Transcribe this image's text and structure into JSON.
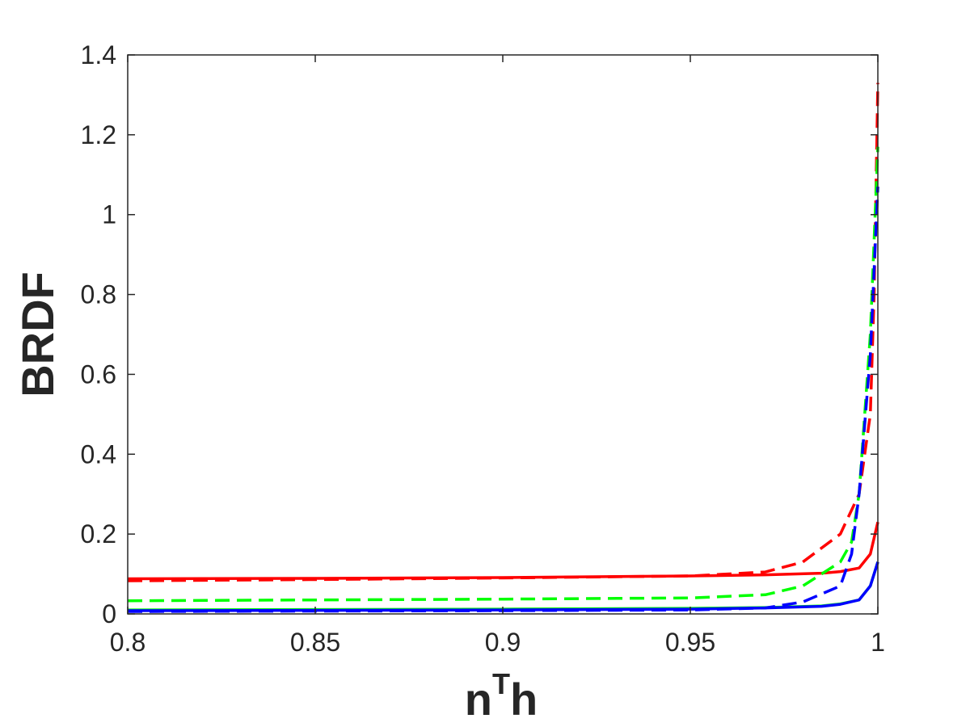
{
  "chart_data": {
    "type": "line",
    "title": "",
    "xlabel": "n",
    "xlabel_superscript": "T",
    "xlabel_suffix": "h",
    "ylabel": "BRDF",
    "xlim": [
      0.8,
      1.0
    ],
    "ylim": [
      0,
      1.4
    ],
    "xticks": [
      0.8,
      0.85,
      0.9,
      0.95,
      1.0
    ],
    "xtick_labels": [
      "0.8",
      "0.85",
      "0.9",
      "0.95",
      "1"
    ],
    "yticks": [
      0,
      0.2,
      0.4,
      0.6,
      0.8,
      1.0,
      1.2,
      1.4
    ],
    "ytick_labels": [
      "0",
      "0.2",
      "0.4",
      "0.6",
      "0.8",
      "1",
      "1.2",
      "1.4"
    ],
    "grid": false,
    "legend": "none",
    "series": [
      {
        "color": "#ff0000",
        "style": "solid",
        "x": [
          0.8,
          0.85,
          0.9,
          0.95,
          0.97,
          0.985,
          0.99,
          0.995,
          0.998,
          1.0
        ],
        "y": [
          0.088,
          0.089,
          0.091,
          0.095,
          0.098,
          0.102,
          0.106,
          0.115,
          0.15,
          0.23
        ]
      },
      {
        "color": "#ff0000",
        "style": "dashed",
        "x": [
          0.8,
          0.85,
          0.9,
          0.95,
          0.97,
          0.98,
          0.99,
          0.995,
          0.998,
          0.999,
          1.0
        ],
        "y": [
          0.083,
          0.086,
          0.09,
          0.095,
          0.105,
          0.13,
          0.2,
          0.3,
          0.5,
          0.8,
          1.33
        ]
      },
      {
        "color": "#00ff00",
        "style": "solid",
        "x": [
          0.8,
          0.85,
          0.9,
          0.95,
          0.97,
          0.985,
          0.99,
          0.995,
          0.998,
          1.0
        ],
        "y": [
          0.01,
          0.011,
          0.012,
          0.014,
          0.016,
          0.02,
          0.025,
          0.035,
          0.07,
          0.13
        ]
      },
      {
        "color": "#00ff00",
        "style": "dashed",
        "x": [
          0.8,
          0.85,
          0.9,
          0.95,
          0.97,
          0.98,
          0.99,
          0.993,
          0.995,
          0.998,
          1.0
        ],
        "y": [
          0.033,
          0.035,
          0.037,
          0.04,
          0.048,
          0.07,
          0.13,
          0.18,
          0.3,
          0.7,
          1.17
        ]
      },
      {
        "color": "#0000ff",
        "style": "solid",
        "x": [
          0.8,
          0.85,
          0.9,
          0.95,
          0.97,
          0.985,
          0.99,
          0.995,
          0.998,
          1.0
        ],
        "y": [
          0.008,
          0.009,
          0.01,
          0.012,
          0.015,
          0.019,
          0.024,
          0.035,
          0.07,
          0.13
        ]
      },
      {
        "color": "#0000ff",
        "style": "dashed",
        "x": [
          0.8,
          0.85,
          0.9,
          0.95,
          0.97,
          0.98,
          0.99,
          0.993,
          0.995,
          0.998,
          1.0
        ],
        "y": [
          0.006,
          0.007,
          0.008,
          0.01,
          0.015,
          0.03,
          0.07,
          0.15,
          0.3,
          0.65,
          1.07
        ]
      }
    ]
  }
}
